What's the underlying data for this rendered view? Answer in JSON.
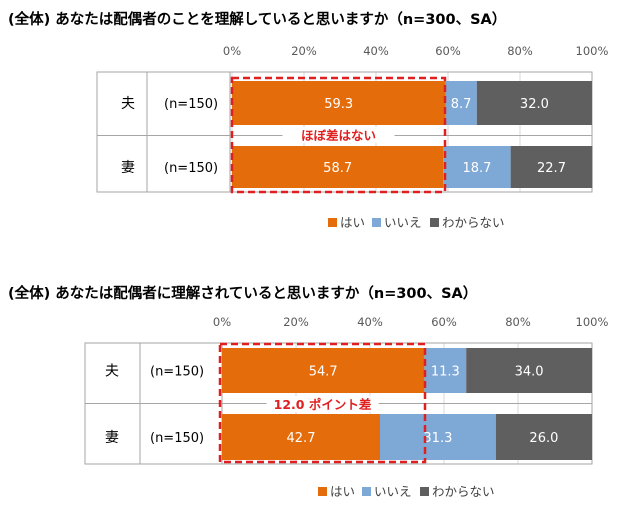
{
  "colors": {
    "yes": "#E46C0A",
    "no": "#7EA8D6",
    "unknown": "#5F5F5F",
    "accent": "#E02020"
  },
  "chart_data": [
    {
      "type": "bar",
      "orientation": "horizontal",
      "stacked": true,
      "title": "(全体) あなたは配偶者のことを理解していると思いますか（n=300、SA）",
      "xlim": [
        0,
        100
      ],
      "ticks": [
        "0%",
        "20%",
        "40%",
        "60%",
        "80%",
        "100%"
      ],
      "categories": [
        "夫",
        "妻"
      ],
      "n_labels": [
        "(n=150)",
        "(n=150)"
      ],
      "series": [
        {
          "name": "はい",
          "values": [
            59.3,
            58.7
          ],
          "labels": [
            "59.3",
            "58.7"
          ]
        },
        {
          "name": "いいえ",
          "values": [
            8.7,
            18.7
          ],
          "labels": [
            "8.7",
            "18.7"
          ]
        },
        {
          "name": "わからない",
          "values": [
            32.0,
            22.7
          ],
          "labels": [
            "32.0",
            "22.7"
          ]
        }
      ],
      "annotation": "ほぼ差はない",
      "legend": "bottom"
    },
    {
      "type": "bar",
      "orientation": "horizontal",
      "stacked": true,
      "title": "(全体) あなたは配偶者に理解されていると思いますか（n=300、SA）",
      "xlim": [
        0,
        100
      ],
      "ticks": [
        "0%",
        "20%",
        "40%",
        "60%",
        "80%",
        "100%"
      ],
      "categories": [
        "夫",
        "妻"
      ],
      "n_labels": [
        "(n=150)",
        "(n=150)"
      ],
      "series": [
        {
          "name": "はい",
          "values": [
            54.7,
            42.7
          ],
          "labels": [
            "54.7",
            "42.7"
          ]
        },
        {
          "name": "いいえ",
          "values": [
            11.3,
            31.3
          ],
          "labels": [
            "11.3",
            "31.3"
          ]
        },
        {
          "name": "わからない",
          "values": [
            34.0,
            26.0
          ],
          "labels": [
            "34.0",
            "26.0"
          ]
        }
      ],
      "annotation": "12.0 ポイント差",
      "legend": "bottom"
    }
  ]
}
